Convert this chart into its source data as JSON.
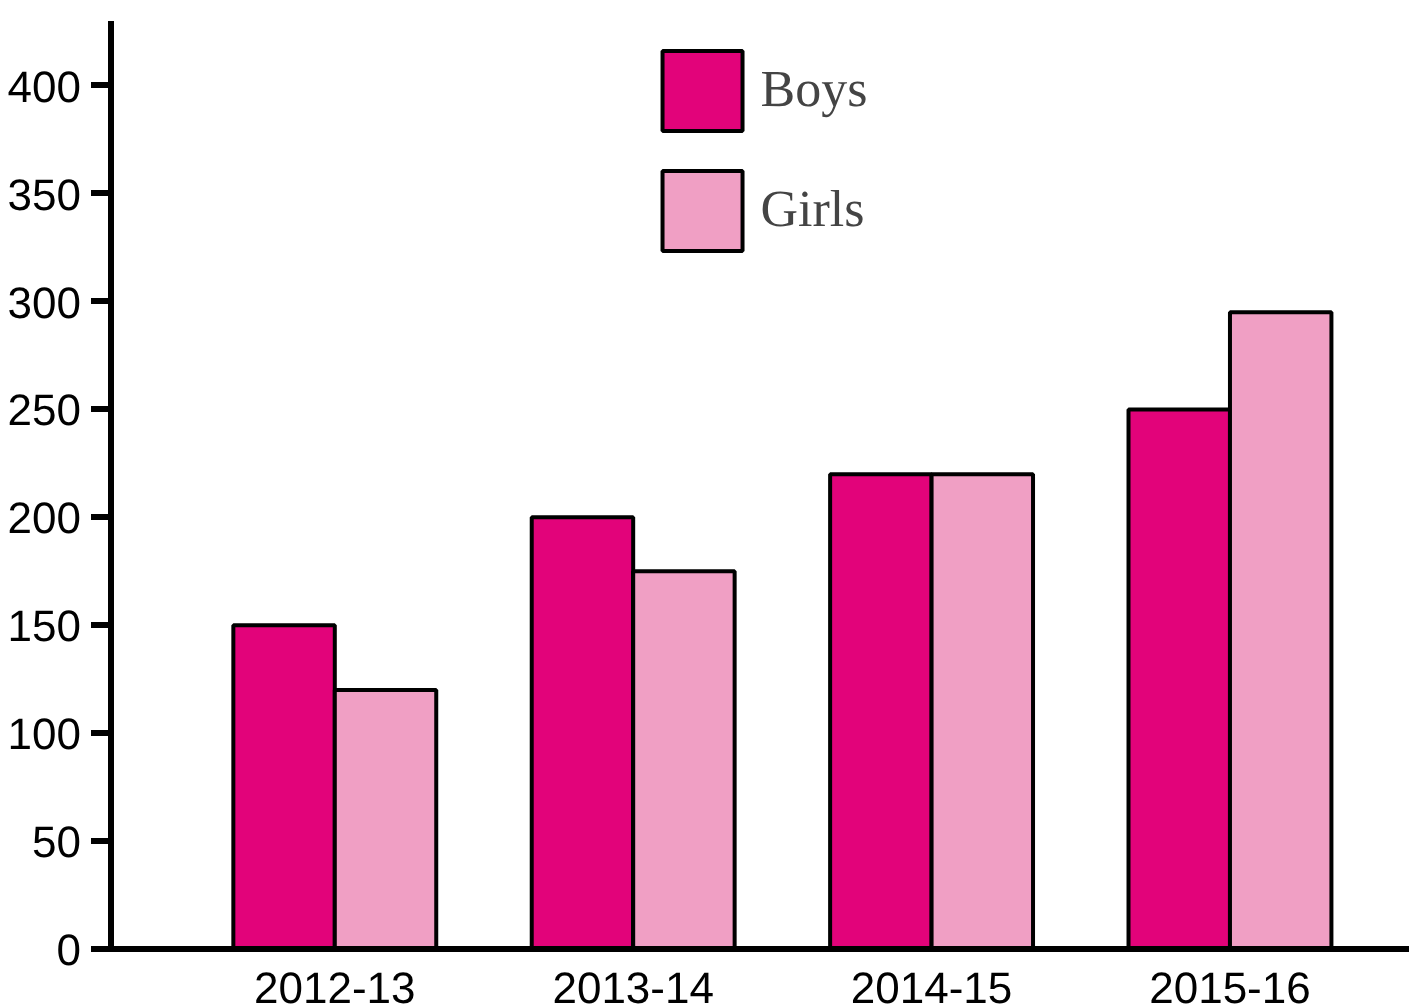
{
  "chart_data": {
    "type": "bar",
    "categories": [
      "2012-13",
      "2013-14",
      "2014-15",
      "2015-16"
    ],
    "series": [
      {
        "name": "Boys",
        "color": "#e2037a",
        "values": [
          150,
          200,
          220,
          250
        ]
      },
      {
        "name": "Girls",
        "color": "#f09fc4",
        "values": [
          120,
          175,
          220,
          295
        ]
      }
    ],
    "ylim": [
      0,
      430
    ],
    "yticks": [
      0,
      50,
      100,
      150,
      200,
      250,
      300,
      350,
      400
    ],
    "grid": false,
    "legend": "top"
  }
}
